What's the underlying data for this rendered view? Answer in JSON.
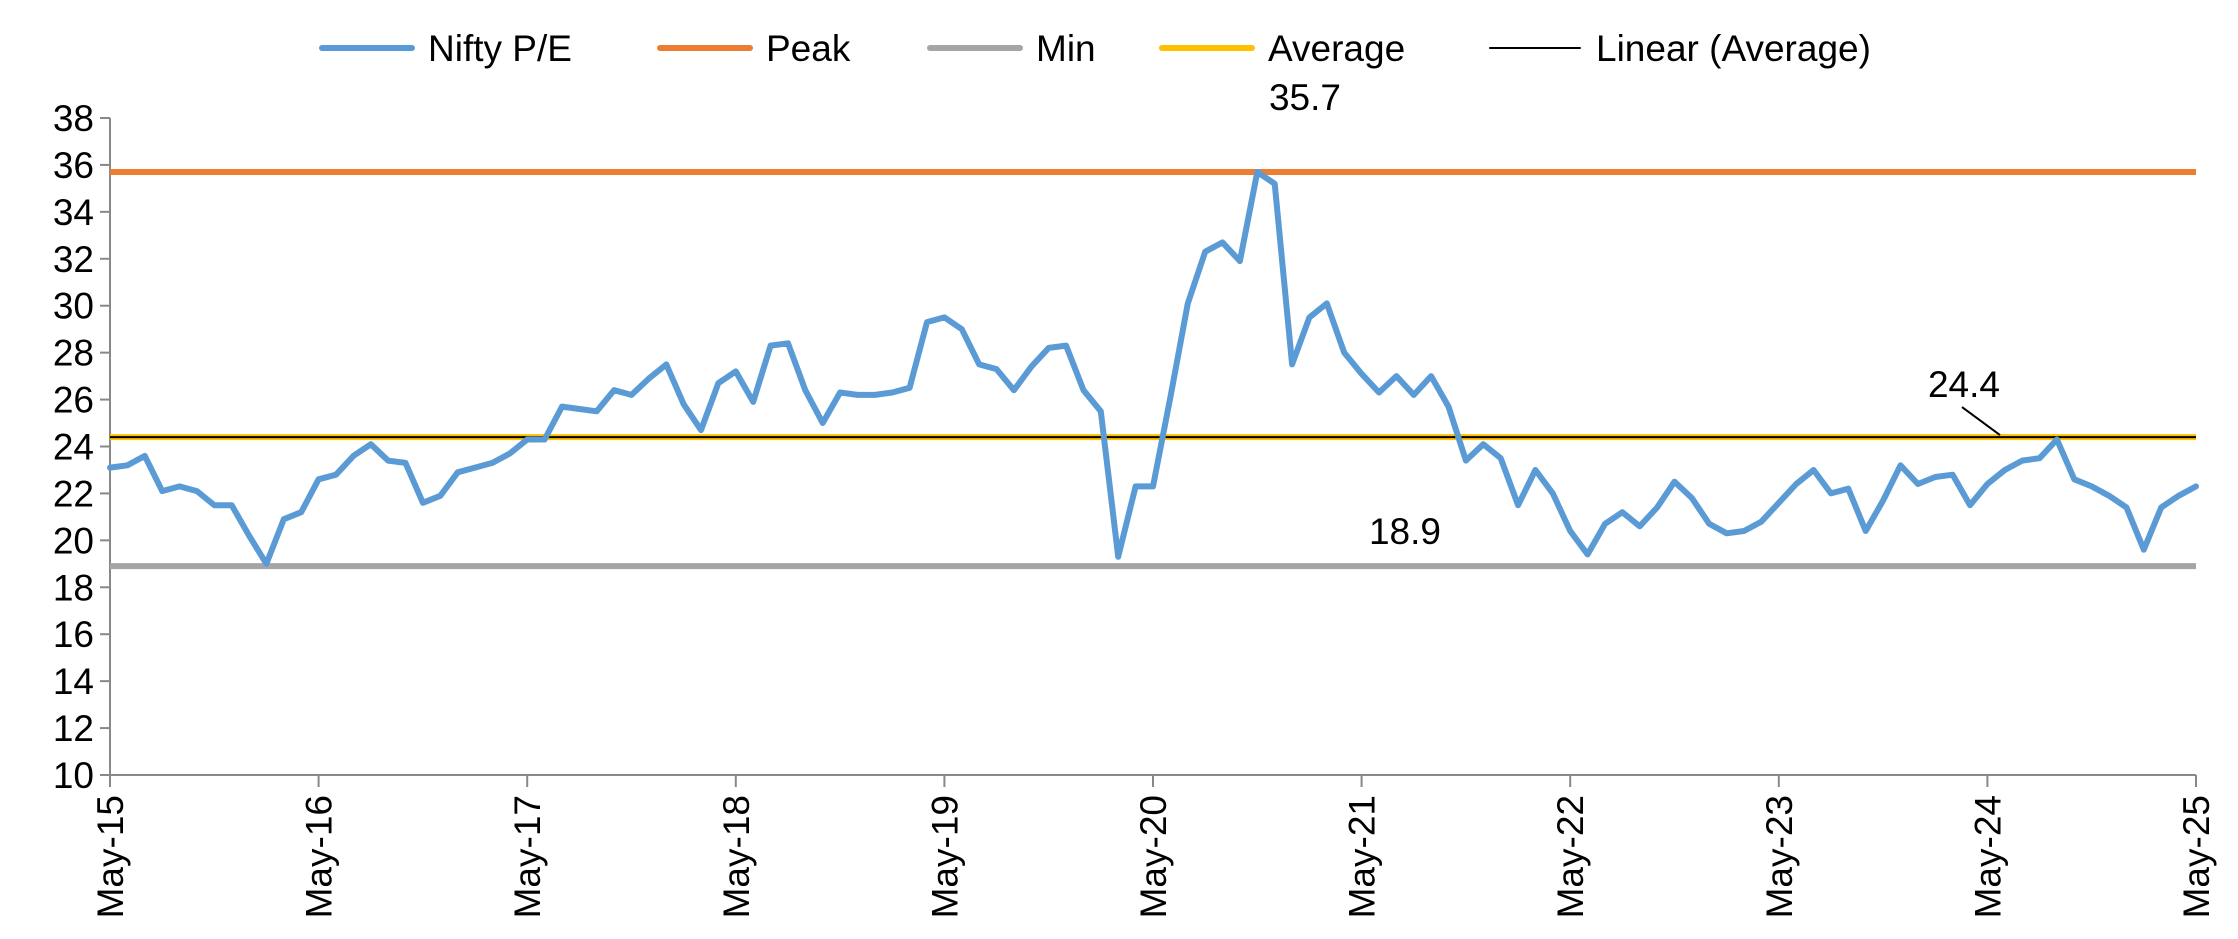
{
  "chart_data": {
    "type": "line",
    "title": "",
    "xlabel": "",
    "ylabel": "",
    "ylim": [
      10,
      38
    ],
    "y_ticks": [
      "10",
      "12",
      "14",
      "16",
      "18",
      "20",
      "22",
      "24",
      "26",
      "28",
      "30",
      "32",
      "34",
      "36",
      "38"
    ],
    "x_ticks": [
      "May-15",
      "May-16",
      "May-17",
      "May-18",
      "May-19",
      "May-20",
      "May-21",
      "May-22",
      "May-23",
      "May-24",
      "May-25"
    ],
    "legend_position": "top",
    "grid": false,
    "series": [
      {
        "name": "Nifty P/E",
        "color": "#5B9BD5",
        "x_start": "May-15",
        "frequency": "monthly",
        "values": [
          23.1,
          23.2,
          23.6,
          22.1,
          22.3,
          22.1,
          21.5,
          21.5,
          20.2,
          19.0,
          20.9,
          21.2,
          22.6,
          22.8,
          23.6,
          24.1,
          23.4,
          23.3,
          21.6,
          21.9,
          22.9,
          23.1,
          23.3,
          23.7,
          24.3,
          24.3,
          25.7,
          25.6,
          25.5,
          26.4,
          26.2,
          26.9,
          27.5,
          25.8,
          24.7,
          26.7,
          27.2,
          25.9,
          28.3,
          28.4,
          26.4,
          25.0,
          26.3,
          26.2,
          26.2,
          26.3,
          26.5,
          29.3,
          29.5,
          29.0,
          27.5,
          27.3,
          26.4,
          27.4,
          28.2,
          28.3,
          26.4,
          25.5,
          19.3,
          22.3,
          22.3,
          26.1,
          30.1,
          32.3,
          32.7,
          31.9,
          35.7,
          35.2,
          27.5,
          29.5,
          30.1,
          28.0,
          27.1,
          26.3,
          27.0,
          26.2,
          27.0,
          25.7,
          23.4,
          24.1,
          23.5,
          21.5,
          23.0,
          22.0,
          20.4,
          19.4,
          20.7,
          21.2,
          20.6,
          21.4,
          22.5,
          21.8,
          20.7,
          20.3,
          20.4,
          20.8,
          21.6,
          22.4,
          23.0,
          22.0,
          22.2,
          20.4,
          21.7,
          23.2,
          22.4,
          22.7,
          22.8,
          21.5,
          22.4,
          23.0,
          23.4,
          23.5,
          24.3,
          22.6,
          22.3,
          21.9,
          21.4,
          19.6,
          21.4,
          21.9,
          22.3
        ]
      },
      {
        "name": "Peak",
        "color": "#ED7D31",
        "value": 35.7
      },
      {
        "name": "Min",
        "color": "#A5A5A5",
        "value": 18.9
      },
      {
        "name": "Average",
        "color": "#FFC000",
        "value": 24.4
      },
      {
        "name": "Linear (Average)",
        "color": "#000000",
        "value": 24.4
      }
    ],
    "annotations": [
      {
        "text": "35.7",
        "value": 35.7
      },
      {
        "text": "24.4",
        "value": 24.4
      },
      {
        "text": "18.9",
        "value": 18.9
      }
    ]
  }
}
